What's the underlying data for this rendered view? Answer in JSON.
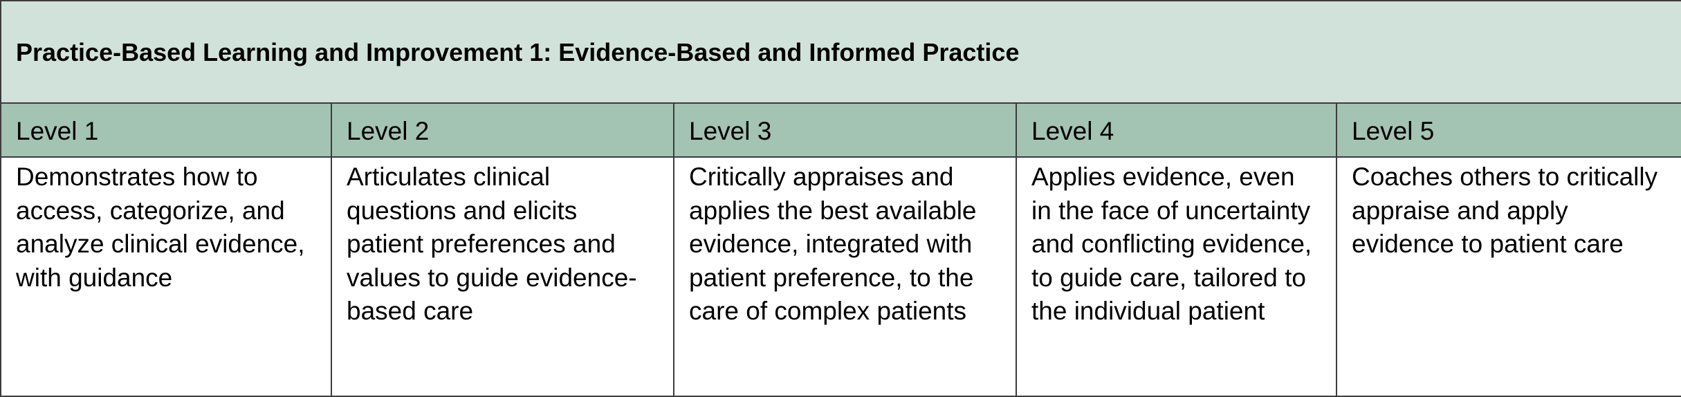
{
  "title": "Practice-Based Learning and Improvement 1: Evidence-Based and Informed Practice",
  "levels": [
    {
      "label": "Level 1",
      "description": "Demonstrates how to access, categorize, and analyze clinical evidence, with guidance"
    },
    {
      "label": "Level 2",
      "description": "Articulates clinical questions and elicits patient preferences and values to guide evidence-based care"
    },
    {
      "label": "Level 3",
      "description": "Critically appraises and applies the best available evidence, integrated with patient preference, to the care of complex patients"
    },
    {
      "label": "Level 4",
      "description": "Applies evidence, even in the face of uncertainty and conflicting evidence, to guide care, tailored to the individual patient"
    },
    {
      "label": "Level 5",
      "description": "Coaches others to critically appraise and apply evidence to patient care"
    }
  ],
  "colors": {
    "title_background": "#d1e2db",
    "header_background": "#a3c3b3",
    "border": "#3c3c3c"
  }
}
